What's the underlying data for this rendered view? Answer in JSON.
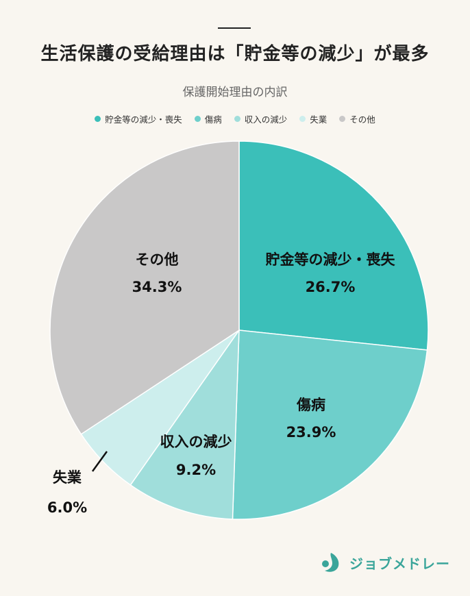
{
  "title": "生活保護の受給理由は「貯金等の減少」が最多",
  "logo_text": "ジョブメドレー",
  "chart_data": {
    "type": "pie",
    "title": "保護開始理由の内訳",
    "legend_position": "top",
    "slices": [
      {
        "name": "貯金等の減少・喪失",
        "label": "貯金等の減少・喪失",
        "value": 26.7,
        "value_text": "26.7%",
        "color": "#3bbfb9"
      },
      {
        "name": "傷病",
        "label": "傷病",
        "value": 23.9,
        "value_text": "23.9%",
        "color": "#6ecfcb"
      },
      {
        "name": "収入の減少",
        "label": "収入の減少",
        "value": 9.2,
        "value_text": "9.2%",
        "color": "#a0dedb"
      },
      {
        "name": "失業",
        "label": "失業",
        "value": 6.0,
        "value_text": "6.0%",
        "color": "#cdeeed"
      },
      {
        "name": "その他",
        "label": "その他",
        "value": 34.3,
        "value_text": "34.3%",
        "color": "#c9c8c8"
      }
    ]
  }
}
